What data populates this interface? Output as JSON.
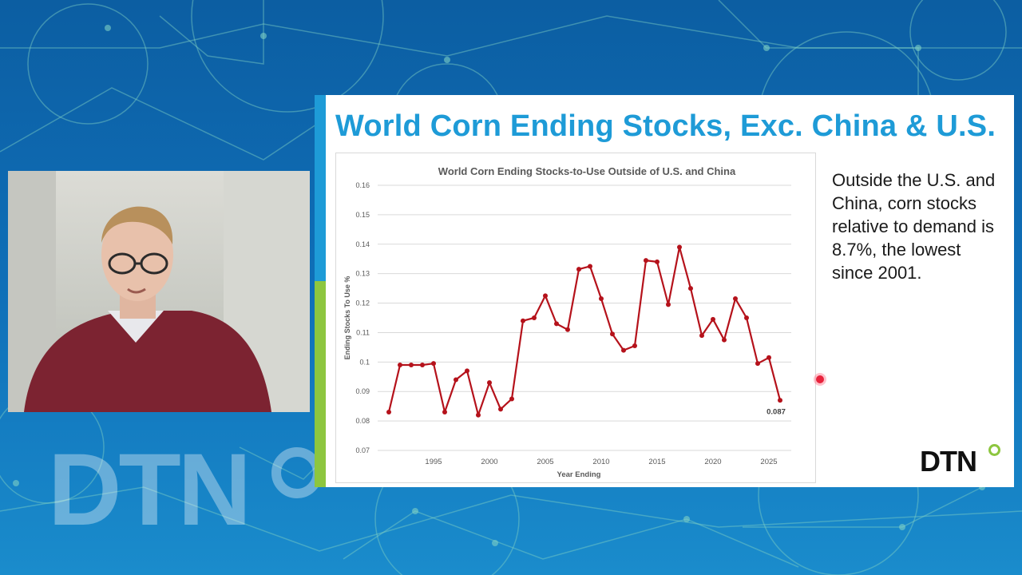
{
  "slide": {
    "title": "World Corn Ending Stocks, Exc. China & U.S.",
    "callout": "Outside the U.S. and China, corn stocks relative to demand is 8.7%, the lowest since 2001.",
    "logo_text": "DTN"
  },
  "background": {
    "logo_text": "DTN"
  },
  "colors": {
    "background": "#0e63a8",
    "accent_blue": "#1e9bd7",
    "accent_green": "#8dc63f",
    "series": "#b5121b"
  },
  "chart_data": {
    "type": "line",
    "title": "World Corn Ending Stocks-to-Use Outside of U.S. and China",
    "xlabel": "Year Ending",
    "ylabel": "Ending Stocks To Use %",
    "xlim": [
      1990,
      2027
    ],
    "ylim": [
      0.07,
      0.16
    ],
    "xticks": [
      1995,
      2000,
      2005,
      2010,
      2015,
      2020,
      2025
    ],
    "yticks": [
      0.07,
      0.08,
      0.09,
      0.1,
      0.11,
      0.12,
      0.13,
      0.14,
      0.15,
      0.16
    ],
    "ytick_labels": [
      "0.07",
      "0.08",
      "0.09",
      "0.1",
      "0.11",
      "0.12",
      "0.13",
      "0.14",
      "0.15",
      "0.16"
    ],
    "grid": true,
    "legend": "none",
    "series": [
      {
        "color": "#b5121b",
        "x": [
          1991,
          1992,
          1993,
          1994,
          1995,
          1996,
          1997,
          1998,
          1999,
          2000,
          2001,
          2002,
          2003,
          2004,
          2005,
          2006,
          2007,
          2008,
          2009,
          2010,
          2011,
          2012,
          2013,
          2014,
          2015,
          2016,
          2017,
          2018,
          2019,
          2020,
          2021,
          2022,
          2023,
          2024,
          2025,
          2026
        ],
        "y": [
          0.083,
          0.099,
          0.099,
          0.099,
          0.0995,
          0.083,
          0.094,
          0.097,
          0.082,
          0.093,
          0.084,
          0.0875,
          0.114,
          0.115,
          0.1225,
          0.113,
          0.111,
          0.1315,
          0.1325,
          0.1215,
          0.1095,
          0.104,
          0.1055,
          0.1345,
          0.134,
          0.1195,
          0.139,
          0.125,
          0.109,
          0.1145,
          0.1075,
          0.1215,
          0.115,
          0.0995,
          0.1015,
          0.087
        ]
      }
    ],
    "annotations": [
      {
        "x": 2026,
        "y": 0.087,
        "text": "0.087"
      }
    ]
  }
}
